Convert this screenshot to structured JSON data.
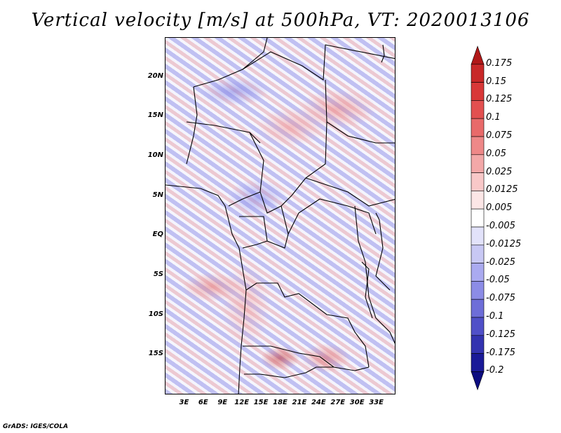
{
  "title": "Vertical velocity [m/s] at 500hPa, VT: 2020013106",
  "credit": "GrADS: IGES/COLA",
  "lat_labels": [
    {
      "text": "20N",
      "value": 20
    },
    {
      "text": "15N",
      "value": 15
    },
    {
      "text": "10N",
      "value": 10
    },
    {
      "text": "5N",
      "value": 5
    },
    {
      "text": "EQ",
      "value": 0
    },
    {
      "text": "5S",
      "value": -5
    },
    {
      "text": "10S",
      "value": -10
    },
    {
      "text": "15S",
      "value": -15
    }
  ],
  "lon_labels": [
    {
      "text": "3E",
      "value": 3
    },
    {
      "text": "6E",
      "value": 6
    },
    {
      "text": "9E",
      "value": 9
    },
    {
      "text": "12E",
      "value": 12
    },
    {
      "text": "15E",
      "value": 15
    },
    {
      "text": "18E",
      "value": 18
    },
    {
      "text": "21E",
      "value": 21
    },
    {
      "text": "24E",
      "value": 24
    },
    {
      "text": "27E",
      "value": 27
    },
    {
      "text": "30E",
      "value": 30
    },
    {
      "text": "33E",
      "value": 33
    }
  ],
  "lat_range": [
    -20,
    25
  ],
  "lon_range": [
    0,
    36
  ],
  "colorbar": {
    "levels": [
      "0.175",
      "0.15",
      "0.125",
      "0.1",
      "0.075",
      "0.05",
      "0.025",
      "0.0125",
      "0.005",
      "-0.005",
      "-0.0125",
      "-0.025",
      "-0.05",
      "-0.075",
      "-0.1",
      "-0.125",
      "-0.175",
      "-0.2"
    ],
    "colors": [
      "#b01818",
      "#c82828",
      "#d83838",
      "#e25050",
      "#e86a6a",
      "#ee8888",
      "#f3a8a8",
      "#f8c8c8",
      "#fce6e6",
      "#ffffff",
      "#e2e2fa",
      "#c8c8f4",
      "#aaaaf0",
      "#8c8ce6",
      "#6e6ed8",
      "#5050c8",
      "#3333b0",
      "#1a1a98",
      "#0c0c80"
    ]
  }
}
